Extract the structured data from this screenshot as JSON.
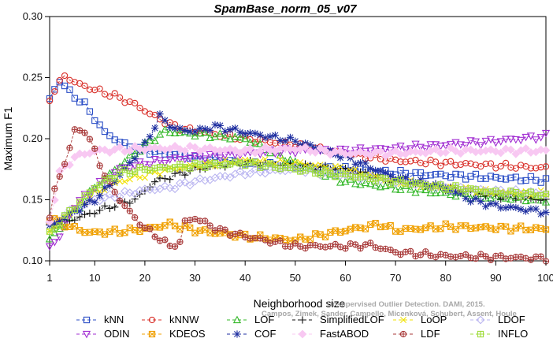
{
  "chart_data": {
    "type": "line",
    "title": "SpamBase_norm_05_v07",
    "xlabel": "Neighborhood size",
    "ylabel": "Maximum F1",
    "xlim": [
      1,
      100
    ],
    "ylim": [
      0.1,
      0.3
    ],
    "xticks": [
      1,
      10,
      20,
      30,
      40,
      50,
      60,
      70,
      80,
      90,
      100
    ],
    "yticks": [
      0.1,
      0.15,
      0.2,
      0.25,
      0.3
    ],
    "xtick_labels": [
      "1",
      "10",
      "20",
      "30",
      "40",
      "50",
      "60",
      "70",
      "80",
      "90",
      "100"
    ],
    "ytick_labels": [
      "0.10",
      "0.15",
      "0.20",
      "0.25",
      "0.30"
    ],
    "grid": false,
    "legend_position": "bottom",
    "watermark": {
      "line1": "Unsupervised Outlier Detection. DAMI, 2015.",
      "line2": "Campos, Zimek, Sander, Campello, Micenková, Schubert, Assent, Houle"
    },
    "series": [
      {
        "name": "kNN",
        "color": "#2b4ec6",
        "marker": "square",
        "anchors": [
          [
            1,
            0.232
          ],
          [
            3,
            0.248
          ],
          [
            5,
            0.238
          ],
          [
            8,
            0.228
          ],
          [
            12,
            0.205
          ],
          [
            16,
            0.195
          ],
          [
            20,
            0.19
          ],
          [
            30,
            0.185
          ],
          [
            40,
            0.18
          ],
          [
            50,
            0.177
          ],
          [
            60,
            0.175
          ],
          [
            70,
            0.172
          ],
          [
            80,
            0.17
          ],
          [
            90,
            0.168
          ],
          [
            100,
            0.166
          ]
        ]
      },
      {
        "name": "kNNW",
        "color": "#d9302a",
        "marker": "circle",
        "anchors": [
          [
            1,
            0.233
          ],
          [
            4,
            0.252
          ],
          [
            6,
            0.246
          ],
          [
            10,
            0.24
          ],
          [
            14,
            0.235
          ],
          [
            18,
            0.228
          ],
          [
            22,
            0.218
          ],
          [
            26,
            0.21
          ],
          [
            30,
            0.206
          ],
          [
            40,
            0.2
          ],
          [
            50,
            0.195
          ],
          [
            60,
            0.188
          ],
          [
            70,
            0.182
          ],
          [
            80,
            0.18
          ],
          [
            90,
            0.178
          ],
          [
            100,
            0.176
          ]
        ]
      },
      {
        "name": "LOF",
        "color": "#35b82a",
        "marker": "triangle-up",
        "anchors": [
          [
            1,
            0.118
          ],
          [
            4,
            0.13
          ],
          [
            7,
            0.145
          ],
          [
            10,
            0.16
          ],
          [
            15,
            0.178
          ],
          [
            20,
            0.195
          ],
          [
            24,
            0.206
          ],
          [
            30,
            0.204
          ],
          [
            40,
            0.2
          ],
          [
            50,
            0.18
          ],
          [
            60,
            0.165
          ],
          [
            70,
            0.16
          ],
          [
            80,
            0.155
          ],
          [
            90,
            0.152
          ],
          [
            100,
            0.15
          ]
        ]
      },
      {
        "name": "SimplifiedLOF",
        "color": "#111111",
        "marker": "plus",
        "anchors": [
          [
            1,
            0.128
          ],
          [
            5,
            0.133
          ],
          [
            10,
            0.14
          ],
          [
            15,
            0.147
          ],
          [
            18,
            0.15
          ],
          [
            22,
            0.165
          ],
          [
            26,
            0.17
          ],
          [
            30,
            0.175
          ],
          [
            35,
            0.178
          ],
          [
            40,
            0.18
          ],
          [
            50,
            0.178
          ],
          [
            60,
            0.175
          ],
          [
            70,
            0.165
          ],
          [
            80,
            0.16
          ],
          [
            90,
            0.153
          ],
          [
            100,
            0.15
          ]
        ]
      },
      {
        "name": "LoOP",
        "color": "#f0e000",
        "marker": "x",
        "anchors": [
          [
            1,
            0.125
          ],
          [
            5,
            0.14
          ],
          [
            10,
            0.155
          ],
          [
            15,
            0.165
          ],
          [
            20,
            0.17
          ],
          [
            25,
            0.175
          ],
          [
            30,
            0.178
          ],
          [
            40,
            0.182
          ],
          [
            50,
            0.18
          ],
          [
            60,
            0.175
          ],
          [
            70,
            0.165
          ],
          [
            80,
            0.16
          ],
          [
            90,
            0.156
          ],
          [
            100,
            0.155
          ]
        ]
      },
      {
        "name": "LDOF",
        "color": "#b9b4f0",
        "marker": "diamond",
        "anchors": [
          [
            1,
            0.13
          ],
          [
            5,
            0.14
          ],
          [
            10,
            0.15
          ],
          [
            20,
            0.158
          ],
          [
            25,
            0.16
          ],
          [
            30,
            0.165
          ],
          [
            40,
            0.172
          ],
          [
            50,
            0.175
          ],
          [
            60,
            0.17
          ],
          [
            70,
            0.165
          ],
          [
            80,
            0.16
          ],
          [
            90,
            0.157
          ],
          [
            100,
            0.155
          ]
        ]
      },
      {
        "name": "ODIN",
        "color": "#a22fd2",
        "marker": "triangle-down",
        "anchors": [
          [
            1,
            0.112
          ],
          [
            3,
            0.12
          ],
          [
            6,
            0.145
          ],
          [
            10,
            0.16
          ],
          [
            15,
            0.175
          ],
          [
            20,
            0.18
          ],
          [
            30,
            0.185
          ],
          [
            40,
            0.188
          ],
          [
            50,
            0.19
          ],
          [
            60,
            0.19
          ],
          [
            70,
            0.192
          ],
          [
            80,
            0.195
          ],
          [
            90,
            0.198
          ],
          [
            100,
            0.202
          ]
        ]
      },
      {
        "name": "KDEOS",
        "color": "#f0a000",
        "marker": "square-x",
        "anchors": [
          [
            1,
            0.135
          ],
          [
            5,
            0.128
          ],
          [
            8,
            0.124
          ],
          [
            10,
            0.123
          ],
          [
            15,
            0.124
          ],
          [
            20,
            0.126
          ],
          [
            25,
            0.13
          ],
          [
            30,
            0.125
          ],
          [
            40,
            0.12
          ],
          [
            50,
            0.117
          ],
          [
            60,
            0.125
          ],
          [
            67,
            0.13
          ],
          [
            70,
            0.125
          ],
          [
            80,
            0.128
          ],
          [
            90,
            0.127
          ],
          [
            100,
            0.126
          ]
        ]
      },
      {
        "name": "COF",
        "color": "#1f2fa0",
        "marker": "asterisk",
        "anchors": [
          [
            1,
            0.128
          ],
          [
            5,
            0.138
          ],
          [
            10,
            0.15
          ],
          [
            15,
            0.17
          ],
          [
            20,
            0.195
          ],
          [
            23,
            0.218
          ],
          [
            26,
            0.208
          ],
          [
            30,
            0.206
          ],
          [
            34,
            0.21
          ],
          [
            40,
            0.205
          ],
          [
            50,
            0.198
          ],
          [
            60,
            0.185
          ],
          [
            70,
            0.168
          ],
          [
            80,
            0.16
          ],
          [
            85,
            0.15
          ],
          [
            90,
            0.145
          ],
          [
            100,
            0.14
          ]
        ]
      },
      {
        "name": "FastABOD",
        "color": "#f8c8f2",
        "marker": "diamond-filled",
        "anchors": [
          [
            1,
            0.132
          ],
          [
            3,
            0.172
          ],
          [
            6,
            0.185
          ],
          [
            10,
            0.19
          ],
          [
            20,
            0.192
          ],
          [
            30,
            0.192
          ],
          [
            40,
            0.19
          ],
          [
            50,
            0.192
          ],
          [
            60,
            0.188
          ],
          [
            70,
            0.188
          ],
          [
            80,
            0.19
          ],
          [
            90,
            0.19
          ],
          [
            100,
            0.19
          ]
        ]
      },
      {
        "name": "LDF",
        "color": "#a83a3a",
        "marker": "circle-plus",
        "anchors": [
          [
            1,
            0.135
          ],
          [
            2,
            0.158
          ],
          [
            4,
            0.18
          ],
          [
            6,
            0.206
          ],
          [
            8,
            0.207
          ],
          [
            10,
            0.19
          ],
          [
            12,
            0.17
          ],
          [
            15,
            0.15
          ],
          [
            18,
            0.135
          ],
          [
            20,
            0.127
          ],
          [
            23,
            0.118
          ],
          [
            25,
            0.112
          ],
          [
            27,
            0.115
          ],
          [
            28,
            0.132
          ],
          [
            30,
            0.135
          ],
          [
            35,
            0.125
          ],
          [
            40,
            0.12
          ],
          [
            50,
            0.112
          ],
          [
            60,
            0.112
          ],
          [
            65,
            0.113
          ],
          [
            70,
            0.107
          ],
          [
            80,
            0.104
          ],
          [
            90,
            0.103
          ],
          [
            100,
            0.102
          ]
        ]
      },
      {
        "name": "INFLO",
        "color": "#a0dc3c",
        "marker": "square-plus",
        "anchors": [
          [
            1,
            0.122
          ],
          [
            5,
            0.14
          ],
          [
            10,
            0.16
          ],
          [
            15,
            0.172
          ],
          [
            20,
            0.175
          ],
          [
            30,
            0.178
          ],
          [
            40,
            0.18
          ],
          [
            50,
            0.175
          ],
          [
            60,
            0.17
          ],
          [
            70,
            0.165
          ],
          [
            80,
            0.16
          ],
          [
            90,
            0.156
          ],
          [
            100,
            0.154
          ]
        ]
      }
    ]
  }
}
